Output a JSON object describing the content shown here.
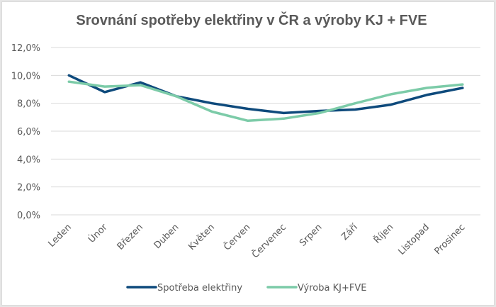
{
  "chart_data": {
    "type": "line",
    "title": "Srovnání spotřeby elektřiny v ČR a výroby KJ + FVE",
    "xlabel": "",
    "ylabel": "",
    "categories": [
      "Leden",
      "Únor",
      "Březen",
      "Duben",
      "Květen",
      "Červen",
      "Červenec",
      "Srpen",
      "Září",
      "Říjen",
      "Listopad",
      "Prosinec"
    ],
    "yticks": [
      "0,0%",
      "2,0%",
      "4,0%",
      "6,0%",
      "8,0%",
      "10,0%",
      "12,0%"
    ],
    "ylim": [
      0,
      12
    ],
    "grid": true,
    "legend_position": "bottom",
    "series": [
      {
        "name": "Spotřeba elektřiny",
        "color": "#0e4a7c",
        "values": [
          10.0,
          8.8,
          9.5,
          8.5,
          8.0,
          7.6,
          7.3,
          7.45,
          7.55,
          7.9,
          8.6,
          9.1
        ]
      },
      {
        "name": "Výroba KJ+FVE",
        "color": "#7ccba8",
        "values": [
          9.55,
          9.2,
          9.3,
          8.5,
          7.4,
          6.75,
          6.9,
          7.3,
          8.0,
          8.65,
          9.1,
          9.35
        ]
      }
    ]
  }
}
